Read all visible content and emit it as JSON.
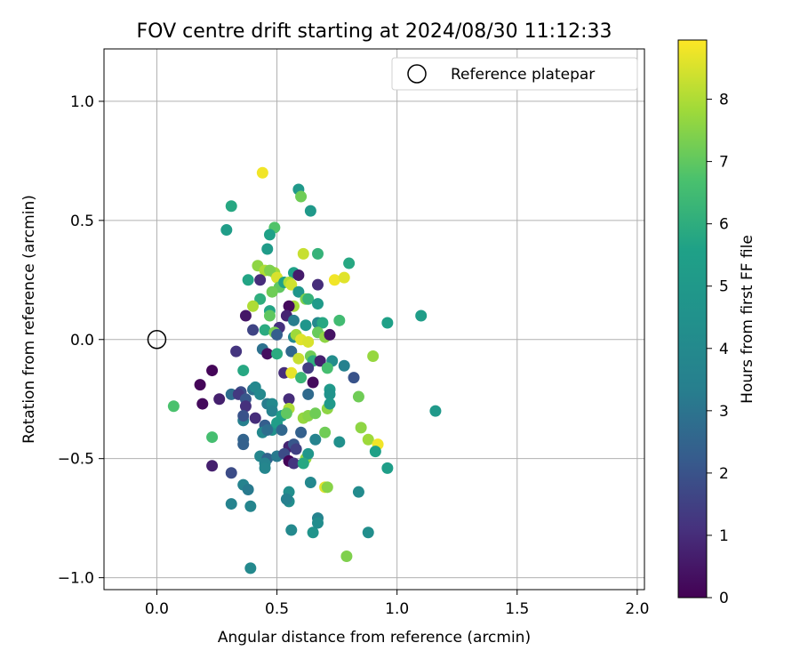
{
  "chart_data": {
    "type": "scatter",
    "title": "FOV centre drift starting at 2024/08/30 11:12:33",
    "xlabel": "Angular distance from reference (arcmin)",
    "ylabel": "Rotation from reference (arcmin)",
    "xlim": [
      -0.22,
      2.03
    ],
    "ylim": [
      -1.05,
      1.22
    ],
    "xticks": [
      0.0,
      0.5,
      1.0,
      1.5,
      2.0
    ],
    "xtick_labels": [
      "0.0",
      "0.5",
      "1.0",
      "1.5",
      "2.0"
    ],
    "yticks": [
      -1.0,
      -0.5,
      0.0,
      0.5,
      1.0
    ],
    "ytick_labels": [
      "−1.0",
      "−0.5",
      "0.0",
      "0.5",
      "1.0"
    ],
    "grid": true,
    "legend": {
      "placement": "top-right",
      "entries": [
        "Reference platepar"
      ]
    },
    "reference": {
      "x": 0.0,
      "y": 0.0
    },
    "colorbar": {
      "label": "Hours from first FF file",
      "min": 0,
      "max": 8.95,
      "ticks": [
        0,
        1,
        2,
        3,
        4,
        5,
        6,
        7,
        8
      ],
      "tick_labels": [
        "0",
        "1",
        "2",
        "3",
        "4",
        "5",
        "6",
        "7",
        "8"
      ],
      "colormap": "viridis"
    },
    "points": [
      [
        0.44,
        0.7,
        8.8
      ],
      [
        0.59,
        0.63,
        5.0
      ],
      [
        0.6,
        0.6,
        7.2
      ],
      [
        0.64,
        0.54,
        5.0
      ],
      [
        0.31,
        0.56,
        5.8
      ],
      [
        0.29,
        0.46,
        5.3
      ],
      [
        0.49,
        0.47,
        6.8
      ],
      [
        0.47,
        0.44,
        5.6
      ],
      [
        0.61,
        0.36,
        8.3
      ],
      [
        0.67,
        0.36,
        6.2
      ],
      [
        0.46,
        0.38,
        5.2
      ],
      [
        0.8,
        0.32,
        5.8
      ],
      [
        0.42,
        0.31,
        7.6
      ],
      [
        0.45,
        0.29,
        8.0
      ],
      [
        0.49,
        0.28,
        7.8
      ],
      [
        0.47,
        0.29,
        7.4
      ],
      [
        0.57,
        0.28,
        5.6
      ],
      [
        0.59,
        0.27,
        0.6
      ],
      [
        0.38,
        0.25,
        5.7
      ],
      [
        0.43,
        0.25,
        1.0
      ],
      [
        0.5,
        0.26,
        8.5
      ],
      [
        0.51,
        0.22,
        7.0
      ],
      [
        0.53,
        0.24,
        5.5
      ],
      [
        0.55,
        0.24,
        8.0
      ],
      [
        0.56,
        0.23,
        8.4
      ],
      [
        0.74,
        0.25,
        8.8
      ],
      [
        0.78,
        0.26,
        8.6
      ],
      [
        0.67,
        0.23,
        1.0
      ],
      [
        0.48,
        0.2,
        7.2
      ],
      [
        0.59,
        0.2,
        4.8
      ],
      [
        0.43,
        0.17,
        6.0
      ],
      [
        0.62,
        0.17,
        7.4
      ],
      [
        0.63,
        0.17,
        6.2
      ],
      [
        0.67,
        0.15,
        5.1
      ],
      [
        0.57,
        0.14,
        7.9
      ],
      [
        0.4,
        0.14,
        8.0
      ],
      [
        0.47,
        0.12,
        5.7
      ],
      [
        0.47,
        0.1,
        7.0
      ],
      [
        0.37,
        0.1,
        0.5
      ],
      [
        0.55,
        0.14,
        0.2
      ],
      [
        0.54,
        0.1,
        0.8
      ],
      [
        0.57,
        0.08,
        3.3
      ],
      [
        0.51,
        0.05,
        1.1
      ],
      [
        0.62,
        0.06,
        4.8
      ],
      [
        0.67,
        0.07,
        4.0
      ],
      [
        0.69,
        0.07,
        5.8
      ],
      [
        0.76,
        0.08,
        6.5
      ],
      [
        0.4,
        0.04,
        1.6
      ],
      [
        0.45,
        0.04,
        5.9
      ],
      [
        0.49,
        0.03,
        7.3
      ],
      [
        0.5,
        0.02,
        2.3
      ],
      [
        0.57,
        0.01,
        4.0
      ],
      [
        0.58,
        0.02,
        7.8
      ],
      [
        0.6,
        0.0,
        8.6
      ],
      [
        0.63,
        -0.01,
        8.5
      ],
      [
        0.67,
        0.03,
        7.1
      ],
      [
        0.7,
        0.01,
        7.6
      ],
      [
        0.72,
        0.02,
        0.4
      ],
      [
        0.96,
        0.07,
        5.5
      ],
      [
        1.1,
        0.1,
        5.3
      ],
      [
        0.33,
        -0.05,
        1.2
      ],
      [
        0.44,
        -0.04,
        2.9
      ],
      [
        0.46,
        -0.06,
        0.3
      ],
      [
        0.5,
        -0.06,
        5.9
      ],
      [
        0.56,
        -0.05,
        2.6
      ],
      [
        0.59,
        -0.08,
        8.3
      ],
      [
        0.64,
        -0.07,
        7.2
      ],
      [
        0.65,
        -0.09,
        6.0
      ],
      [
        0.68,
        -0.09,
        0.7
      ],
      [
        0.73,
        -0.09,
        4.2
      ],
      [
        0.9,
        -0.07,
        7.7
      ],
      [
        0.23,
        -0.13,
        0.1
      ],
      [
        0.36,
        -0.13,
        5.8
      ],
      [
        0.53,
        -0.14,
        1.0
      ],
      [
        0.56,
        -0.14,
        8.7
      ],
      [
        0.6,
        -0.16,
        6.3
      ],
      [
        0.63,
        -0.12,
        1.4
      ],
      [
        0.71,
        -0.12,
        6.6
      ],
      [
        0.78,
        -0.11,
        3.5
      ],
      [
        0.82,
        -0.16,
        2.0
      ],
      [
        0.18,
        -0.19,
        0.1
      ],
      [
        0.35,
        -0.22,
        1.8
      ],
      [
        0.4,
        -0.21,
        3.0
      ],
      [
        0.41,
        -0.2,
        3.9
      ],
      [
        0.43,
        -0.23,
        4.0
      ],
      [
        0.55,
        -0.25,
        1.0
      ],
      [
        0.65,
        -0.18,
        0.2
      ],
      [
        0.72,
        -0.21,
        5.0
      ],
      [
        0.72,
        -0.23,
        4.6
      ],
      [
        0.63,
        -0.23,
        2.7
      ],
      [
        0.84,
        -0.24,
        7.2
      ],
      [
        0.19,
        -0.27,
        0.2
      ],
      [
        0.26,
        -0.25,
        0.7
      ],
      [
        0.31,
        -0.23,
        2.8
      ],
      [
        0.34,
        -0.23,
        1.3
      ],
      [
        0.37,
        -0.25,
        2.1
      ],
      [
        0.37,
        -0.28,
        1.1
      ],
      [
        0.46,
        -0.27,
        3.3
      ],
      [
        0.48,
        -0.27,
        4.0
      ],
      [
        0.48,
        -0.3,
        3.6
      ],
      [
        0.55,
        -0.29,
        8.0
      ],
      [
        0.52,
        -0.32,
        5.4
      ],
      [
        0.54,
        -0.31,
        7.0
      ],
      [
        0.61,
        -0.33,
        7.7
      ],
      [
        0.63,
        -0.32,
        7.5
      ],
      [
        0.66,
        -0.31,
        7.2
      ],
      [
        0.71,
        -0.29,
        7.6
      ],
      [
        0.72,
        -0.27,
        5.0
      ],
      [
        0.07,
        -0.28,
        6.7
      ],
      [
        1.16,
        -0.3,
        5.0
      ],
      [
        0.36,
        -0.34,
        3.4
      ],
      [
        0.36,
        -0.32,
        2.0
      ],
      [
        0.41,
        -0.33,
        1.0
      ],
      [
        0.45,
        -0.36,
        2.3
      ],
      [
        0.48,
        -0.38,
        4.4
      ],
      [
        0.5,
        -0.35,
        5.3
      ],
      [
        0.44,
        -0.39,
        3.9
      ],
      [
        0.46,
        -0.38,
        2.8
      ],
      [
        0.52,
        -0.38,
        2.6
      ],
      [
        0.55,
        -0.45,
        0.8
      ],
      [
        0.6,
        -0.39,
        2.4
      ],
      [
        0.66,
        -0.42,
        3.6
      ],
      [
        0.7,
        -0.39,
        7.2
      ],
      [
        0.76,
        -0.43,
        4.4
      ],
      [
        0.85,
        -0.37,
        7.6
      ],
      [
        0.88,
        -0.42,
        7.8
      ],
      [
        0.92,
        -0.44,
        8.8
      ],
      [
        0.91,
        -0.47,
        5.5
      ],
      [
        0.23,
        -0.41,
        6.6
      ],
      [
        0.36,
        -0.42,
        2.5
      ],
      [
        0.36,
        -0.44,
        2.4
      ],
      [
        0.43,
        -0.49,
        3.8
      ],
      [
        0.46,
        -0.5,
        2.5
      ],
      [
        0.5,
        -0.49,
        3.2
      ],
      [
        0.53,
        -0.48,
        1.8
      ],
      [
        0.55,
        -0.51,
        0.1
      ],
      [
        0.57,
        -0.44,
        2.1
      ],
      [
        0.58,
        -0.46,
        1.5
      ],
      [
        0.62,
        -0.5,
        7.7
      ],
      [
        0.63,
        -0.48,
        4.8
      ],
      [
        0.57,
        -0.52,
        1.2
      ],
      [
        0.61,
        -0.52,
        5.8
      ],
      [
        0.45,
        -0.52,
        3.6
      ],
      [
        0.45,
        -0.54,
        3.8
      ],
      [
        0.23,
        -0.53,
        0.7
      ],
      [
        0.31,
        -0.56,
        1.8
      ],
      [
        0.96,
        -0.54,
        5.4
      ],
      [
        0.36,
        -0.61,
        3.6
      ],
      [
        0.38,
        -0.63,
        3.2
      ],
      [
        0.39,
        -0.7,
        3.7
      ],
      [
        0.31,
        -0.69,
        3.6
      ],
      [
        0.55,
        -0.64,
        4.3
      ],
      [
        0.55,
        -0.68,
        4.2
      ],
      [
        0.54,
        -0.67,
        3.4
      ],
      [
        0.64,
        -0.6,
        3.9
      ],
      [
        0.7,
        -0.62,
        8.6
      ],
      [
        0.71,
        -0.62,
        7.5
      ],
      [
        0.84,
        -0.64,
        4.1
      ],
      [
        0.56,
        -0.8,
        4.0
      ],
      [
        0.65,
        -0.81,
        4.7
      ],
      [
        0.67,
        -0.75,
        3.6
      ],
      [
        0.67,
        -0.77,
        4.2
      ],
      [
        0.88,
        -0.81,
        4.3
      ],
      [
        0.79,
        -0.91,
        7.4
      ],
      [
        0.39,
        -0.96,
        4.0
      ]
    ]
  }
}
